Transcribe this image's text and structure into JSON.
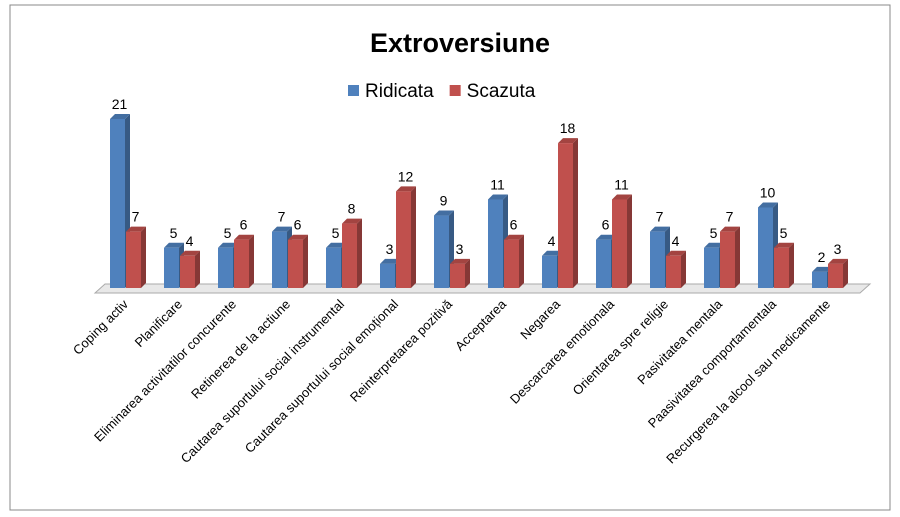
{
  "chart_data": {
    "type": "bar",
    "title": "Extroversiune",
    "categories": [
      "Coping activ",
      "Planificare",
      "Eliminarea activitatilor concurente",
      "Retinerea de la actiune",
      "Cautarea suportului social instrumental",
      "Cautarea suportului social emoțional",
      "Reinterpretarea pozitivă",
      "Acceptarea",
      "Negarea",
      "Descarcarea emotionala",
      "Orientarea spre religie",
      "Pasivitatea mentala",
      "Paasivitatea comportamentala",
      "Recurgerea la alcool sau medicamente"
    ],
    "series": [
      {
        "name": "Ridicata",
        "color": "#4f81bd",
        "values": [
          21,
          5,
          5,
          7,
          5,
          3,
          9,
          11,
          4,
          6,
          7,
          5,
          10,
          2
        ]
      },
      {
        "name": "Scazuta",
        "color": "#c0504d",
        "values": [
          7,
          4,
          6,
          6,
          8,
          12,
          3,
          6,
          18,
          11,
          4,
          7,
          5,
          3
        ]
      }
    ],
    "legend": "top"
  }
}
